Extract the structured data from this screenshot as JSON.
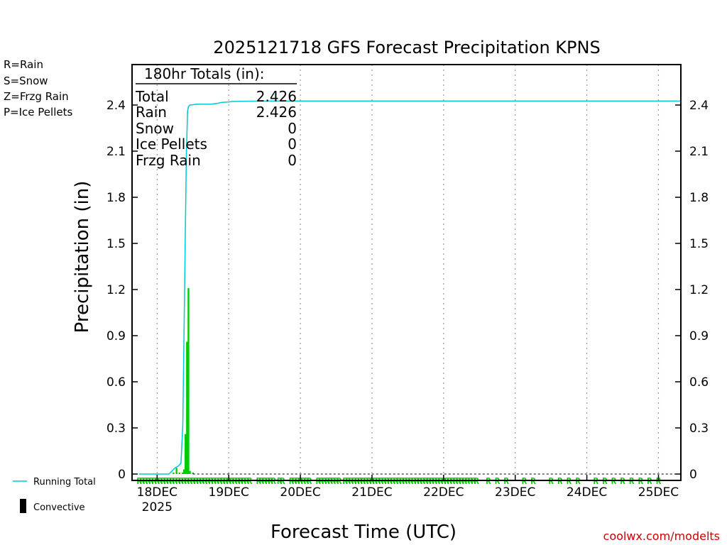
{
  "chart_data": {
    "type": "bar",
    "title": "2025121718 GFS Forecast Precipitation KPNS",
    "xlabel": "Forecast Time (UTC)",
    "ylabel": "Precipitation (in)",
    "ylim": [
      0,
      2.65
    ],
    "y_ticks": [
      "0",
      "0.3",
      "0.6",
      "0.9",
      "1.2",
      "1.5",
      "1.8",
      "2.1",
      "2.4"
    ],
    "x_range_hours": [
      -2.4,
      181.5
    ],
    "x_ticks": [
      {
        "label": "18DEC",
        "hour": 6
      },
      {
        "label": "19DEC",
        "hour": 30
      },
      {
        "label": "20DEC",
        "hour": 54
      },
      {
        "label": "21DEC",
        "hour": 78
      },
      {
        "label": "22DEC",
        "hour": 102
      },
      {
        "label": "23DEC",
        "hour": 126
      },
      {
        "label": "24DEC",
        "hour": 150
      },
      {
        "label": "25DEC",
        "hour": 174
      }
    ],
    "x_year_label": "2025",
    "bars_hour": [
      0,
      11.5,
      12.5,
      13.5,
      14.5,
      15,
      15.5,
      16,
      16.5,
      17,
      18,
      30
    ],
    "bars_value": [
      0.0,
      0.01,
      0.04,
      0.01,
      0.01,
      0.03,
      0.26,
      0.86,
      1.21,
      0.02,
      0.01,
      0.004
    ],
    "running_total_hour": [
      0,
      10,
      11,
      11.5,
      12,
      13,
      14,
      14.6,
      15.2,
      15.8,
      16.2,
      16.5,
      17,
      18,
      19,
      20,
      22,
      24,
      26,
      27,
      28,
      30,
      31,
      36,
      45,
      60,
      80,
      181.5
    ],
    "running_total_value": [
      0,
      0,
      0.02,
      0.03,
      0.04,
      0.05,
      0.07,
      0.32,
      1.2,
      2.08,
      2.36,
      2.39,
      2.4,
      2.402,
      2.405,
      2.405,
      2.405,
      2.405,
      2.41,
      2.415,
      2.418,
      2.42,
      2.423,
      2.425,
      2.426,
      2.426,
      2.426,
      2.426
    ],
    "rain_marker_hours": [
      0,
      1,
      2,
      3,
      4,
      5,
      6,
      7,
      8,
      9,
      10,
      11,
      12,
      13,
      14,
      15,
      16,
      17,
      18,
      19,
      20,
      21,
      22,
      23,
      24,
      25,
      26,
      27,
      28,
      29,
      30,
      31,
      32,
      33,
      34,
      35,
      36,
      37,
      40,
      41,
      42,
      43,
      44,
      45,
      47,
      48,
      51,
      52,
      53,
      54,
      55,
      56,
      57,
      60,
      61,
      62,
      63,
      64,
      65,
      66,
      67,
      69,
      70,
      71,
      72,
      73,
      74,
      75,
      76,
      77,
      78,
      79,
      80,
      81,
      82,
      83,
      84,
      85,
      86,
      87,
      88,
      89,
      90,
      91,
      92,
      93,
      94,
      95,
      96,
      97,
      98,
      99,
      100,
      101,
      102,
      103,
      104,
      105,
      106,
      107,
      108,
      109,
      110,
      111,
      112,
      113,
      117,
      120,
      123,
      129,
      132,
      138,
      141,
      144,
      147,
      153,
      156,
      159,
      162,
      165,
      168,
      171,
      174
    ]
  },
  "totals": {
    "header": "180hr Totals (in):",
    "rows": [
      {
        "label": "Total",
        "value": "2.426"
      },
      {
        "label": "Rain",
        "value": "2.426"
      },
      {
        "label": "Snow",
        "value": "0"
      },
      {
        "label": "Ice Pellets",
        "value": "0"
      },
      {
        "label": "Frzg Rain",
        "value": "0"
      }
    ]
  },
  "ptype_legend": [
    {
      "text": "R=Rain",
      "color": "#00cc00"
    },
    {
      "text": "S=Snow",
      "color": "#3333ff"
    },
    {
      "text": "Z=Frzg Rain",
      "color": "#ff8800"
    },
    {
      "text": "P=Ice Pellets",
      "color": "#ff00aa"
    }
  ],
  "ptype_marker_letter": "R",
  "legend": {
    "running_total": "Running Total",
    "convective": "Convective"
  },
  "colors": {
    "running_total": "#00c8d2",
    "bars": "#00cc00",
    "rain_marker": "#00cc00",
    "grid": "#999999",
    "credit": "#cc0000"
  },
  "credit": "coolwx.com/modelts"
}
